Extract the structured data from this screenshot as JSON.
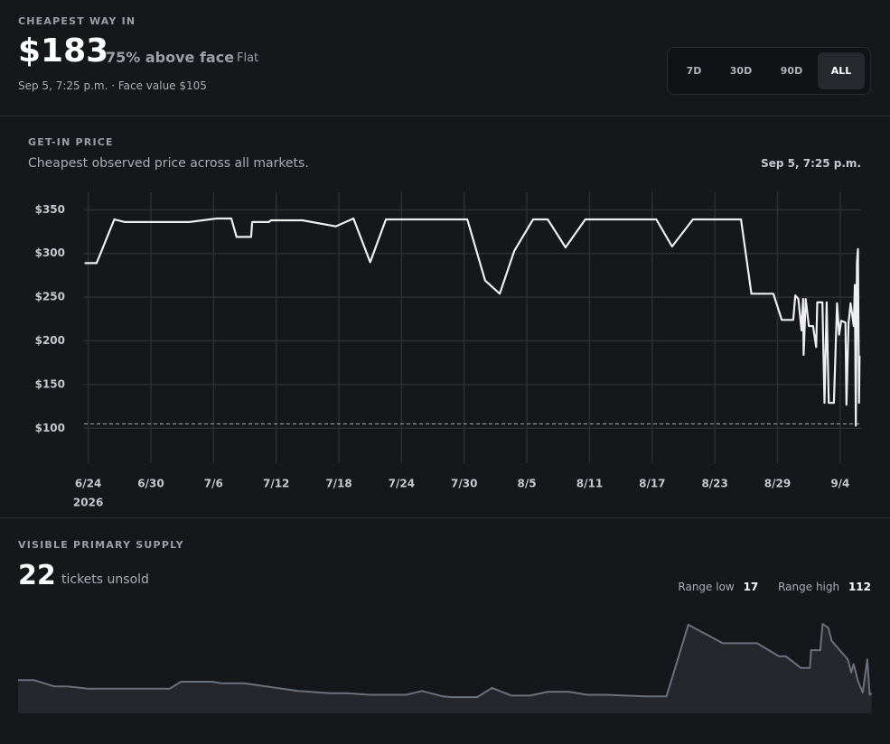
{
  "header": {
    "label": "CHEAPEST WAY IN",
    "price": "$183",
    "premium": "75% above face",
    "trend": "Flat",
    "meta": "Sep 5, 7:25 p.m. · Face value $105"
  },
  "range_buttons": [
    "7D",
    "30D",
    "90D",
    "ALL"
  ],
  "active_range": 3,
  "supply": {
    "label": "VISIBLE PRIMARY SUPPLY",
    "count": "22",
    "unit": "tickets unsold",
    "low_label": "Range low",
    "low": "17",
    "high_label": "Range high",
    "high": "112"
  },
  "chart_data": [
    {
      "type": "line",
      "title": "GET-IN PRICE",
      "subtitle": "Cheapest observed price across all markets.",
      "annotation": "Sep 5, 7:25 p.m.",
      "color": "#eeeeee",
      "x": [
        -0.35,
        0.8,
        2.5,
        3.5,
        9.7,
        12.3,
        13.7,
        14.2,
        15.6,
        15.7,
        17.3,
        17.5,
        20.5,
        23.7,
        25.4,
        27.0,
        28.5,
        36.3,
        38.0,
        39.4,
        40.8,
        42.6,
        44.0,
        45.7,
        47.6,
        54.4,
        55.9,
        57.9,
        62.5,
        63.5,
        65.6,
        66.4,
        67.5,
        67.7,
        68.0,
        68.3,
        68.45,
        68.5,
        68.7,
        69.0,
        69.4,
        69.7,
        69.8,
        70.3,
        70.5,
        70.7,
        70.9,
        71.4,
        71.7,
        71.9,
        72.1,
        72.5,
        72.6,
        72.8,
        73.0,
        73.3,
        73.4,
        73.5,
        73.6,
        73.7,
        73.8,
        73.85
      ],
      "values": [
        289,
        289,
        339,
        336,
        336,
        340,
        340,
        319,
        319,
        336,
        336,
        338,
        338,
        331,
        340,
        290,
        339,
        339,
        269,
        254,
        303,
        339,
        339,
        307,
        339,
        339,
        308,
        339,
        339,
        254,
        254,
        224,
        224,
        252,
        248,
        212,
        248,
        184,
        248,
        217,
        217,
        193,
        244,
        244,
        129,
        244,
        129,
        129,
        243,
        207,
        223,
        221,
        127,
        220,
        243,
        217,
        264,
        103,
        289,
        305,
        129,
        183
      ],
      "xlim": [
        -0.4,
        74
      ],
      "ylim": [
        60,
        370
      ],
      "xticks": [
        {
          "value": 0,
          "label": "6/24"
        },
        {
          "value": 6,
          "label": "6/30"
        },
        {
          "value": 12,
          "label": "7/6"
        },
        {
          "value": 18,
          "label": "7/12"
        },
        {
          "value": 24,
          "label": "7/18"
        },
        {
          "value": 30,
          "label": "7/24"
        },
        {
          "value": 36,
          "label": "7/30"
        },
        {
          "value": 42,
          "label": "8/5"
        },
        {
          "value": 48,
          "label": "8/11"
        },
        {
          "value": 54,
          "label": "8/17"
        },
        {
          "value": 60,
          "label": "8/23"
        },
        {
          "value": 66,
          "label": "8/29"
        },
        {
          "value": 72,
          "label": "9/4"
        }
      ],
      "x_year": "2026",
      "yticks": [
        {
          "value": 100,
          "label": "$100"
        },
        {
          "value": 150,
          "label": "$150"
        },
        {
          "value": 200,
          "label": "$200"
        },
        {
          "value": 250,
          "label": "$250"
        },
        {
          "value": 300,
          "label": "$300"
        },
        {
          "value": 350,
          "label": "$350"
        }
      ],
      "face_value": 105,
      "grid": true
    },
    {
      "type": "area",
      "color": "#6b717c",
      "x": [
        -0.4,
        1.0,
        2.75,
        3.9,
        5.7,
        12.8,
        13.8,
        16.5,
        17.3,
        19.3,
        24.0,
        26.8,
        28.3,
        30.3,
        33.4,
        34.8,
        36.6,
        37.4,
        39.6,
        40.9,
        42.6,
        44.2,
        45.8,
        47.6,
        49.2,
        50.8,
        54.3,
        56.1,
        58.0,
        61.0,
        64.0,
        65.9,
        66.5,
        67.8,
        68.6,
        68.7,
        69.5,
        69.7,
        70.2,
        70.5,
        71.2,
        71.9,
        72.2,
        72.4,
        72.8,
        73.2,
        73.6,
        73.8,
        73.98
      ],
      "values": [
        39,
        39,
        31,
        31,
        28,
        28,
        37,
        37,
        35,
        35,
        25,
        22,
        22,
        20,
        20,
        25,
        18,
        17,
        17,
        29,
        19,
        19,
        24,
        24,
        20,
        20,
        18,
        18,
        111,
        87,
        87,
        70,
        70,
        55,
        55,
        78,
        78,
        112,
        107,
        90,
        78,
        66,
        49,
        60,
        37,
        23,
        66,
        20,
        22
      ],
      "xlim": [
        -0.4,
        74
      ],
      "ylim": [
        -4,
        125
      ]
    }
  ]
}
